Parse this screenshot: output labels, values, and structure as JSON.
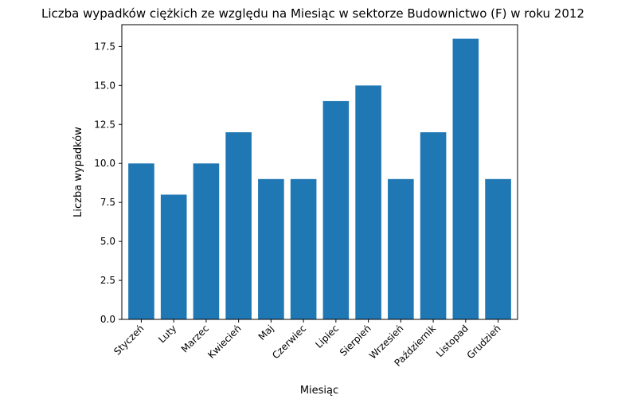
{
  "chart_data": {
    "type": "bar",
    "title": "Liczba wypadków ciężkich ze względu na Miesiąc w sektorze Budownictwo  (F)    w roku 2012",
    "xlabel": "Miesiąc",
    "ylabel": "Liczba wypadków",
    "categories": [
      "Styczeń",
      "Luty",
      "Marzec",
      "Kwiecień",
      "Maj",
      "Czerwiec",
      "Lipiec",
      "Sierpień",
      "Wrzesień",
      "Październik",
      "Listopad",
      "Grudzień"
    ],
    "values": [
      10,
      8,
      10,
      12,
      9,
      9,
      14,
      15,
      9,
      12,
      18,
      9
    ],
    "ylim": [
      0,
      18.9
    ],
    "yticks": [
      0.0,
      2.5,
      5.0,
      7.5,
      10.0,
      12.5,
      15.0,
      17.5
    ],
    "ytick_labels": [
      "0.0",
      "2.5",
      "5.0",
      "7.5",
      "10.0",
      "12.5",
      "15.0",
      "17.5"
    ],
    "bar_color": "#1f77b4",
    "grid": false,
    "legend": false
  }
}
